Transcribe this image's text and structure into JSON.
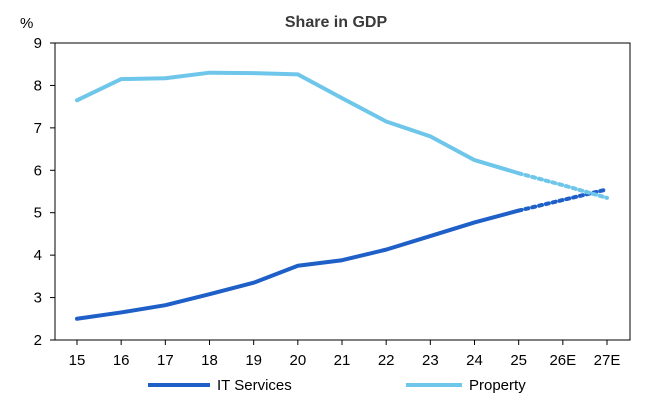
{
  "chart_data": {
    "type": "line",
    "title": "Share in GDP",
    "ylabel": "%",
    "xlabel": "",
    "categories": [
      "15",
      "16",
      "17",
      "18",
      "19",
      "20",
      "21",
      "22",
      "23",
      "24",
      "25",
      "26E",
      "27E"
    ],
    "ylim": [
      2,
      9
    ],
    "yticks": [
      2,
      3,
      4,
      5,
      6,
      7,
      8,
      9
    ],
    "ytick_labels": [
      "2",
      "3",
      "4",
      "5",
      "6",
      "7",
      "8",
      "9"
    ],
    "grid": false,
    "legend_position": "bottom",
    "series": [
      {
        "name": "IT Services",
        "color": "#1f5fc8",
        "values": [
          2.5,
          2.65,
          2.82,
          3.08,
          3.35,
          3.75,
          3.88,
          4.13,
          4.45,
          4.77,
          5.05,
          5.3,
          5.55
        ],
        "projected_from_index": 10
      },
      {
        "name": "Property",
        "color": "#6ec6ea",
        "values": [
          7.65,
          8.15,
          8.17,
          8.3,
          8.29,
          8.26,
          7.7,
          7.15,
          6.8,
          6.24,
          5.93,
          5.65,
          5.35
        ],
        "projected_from_index": 10
      }
    ]
  }
}
